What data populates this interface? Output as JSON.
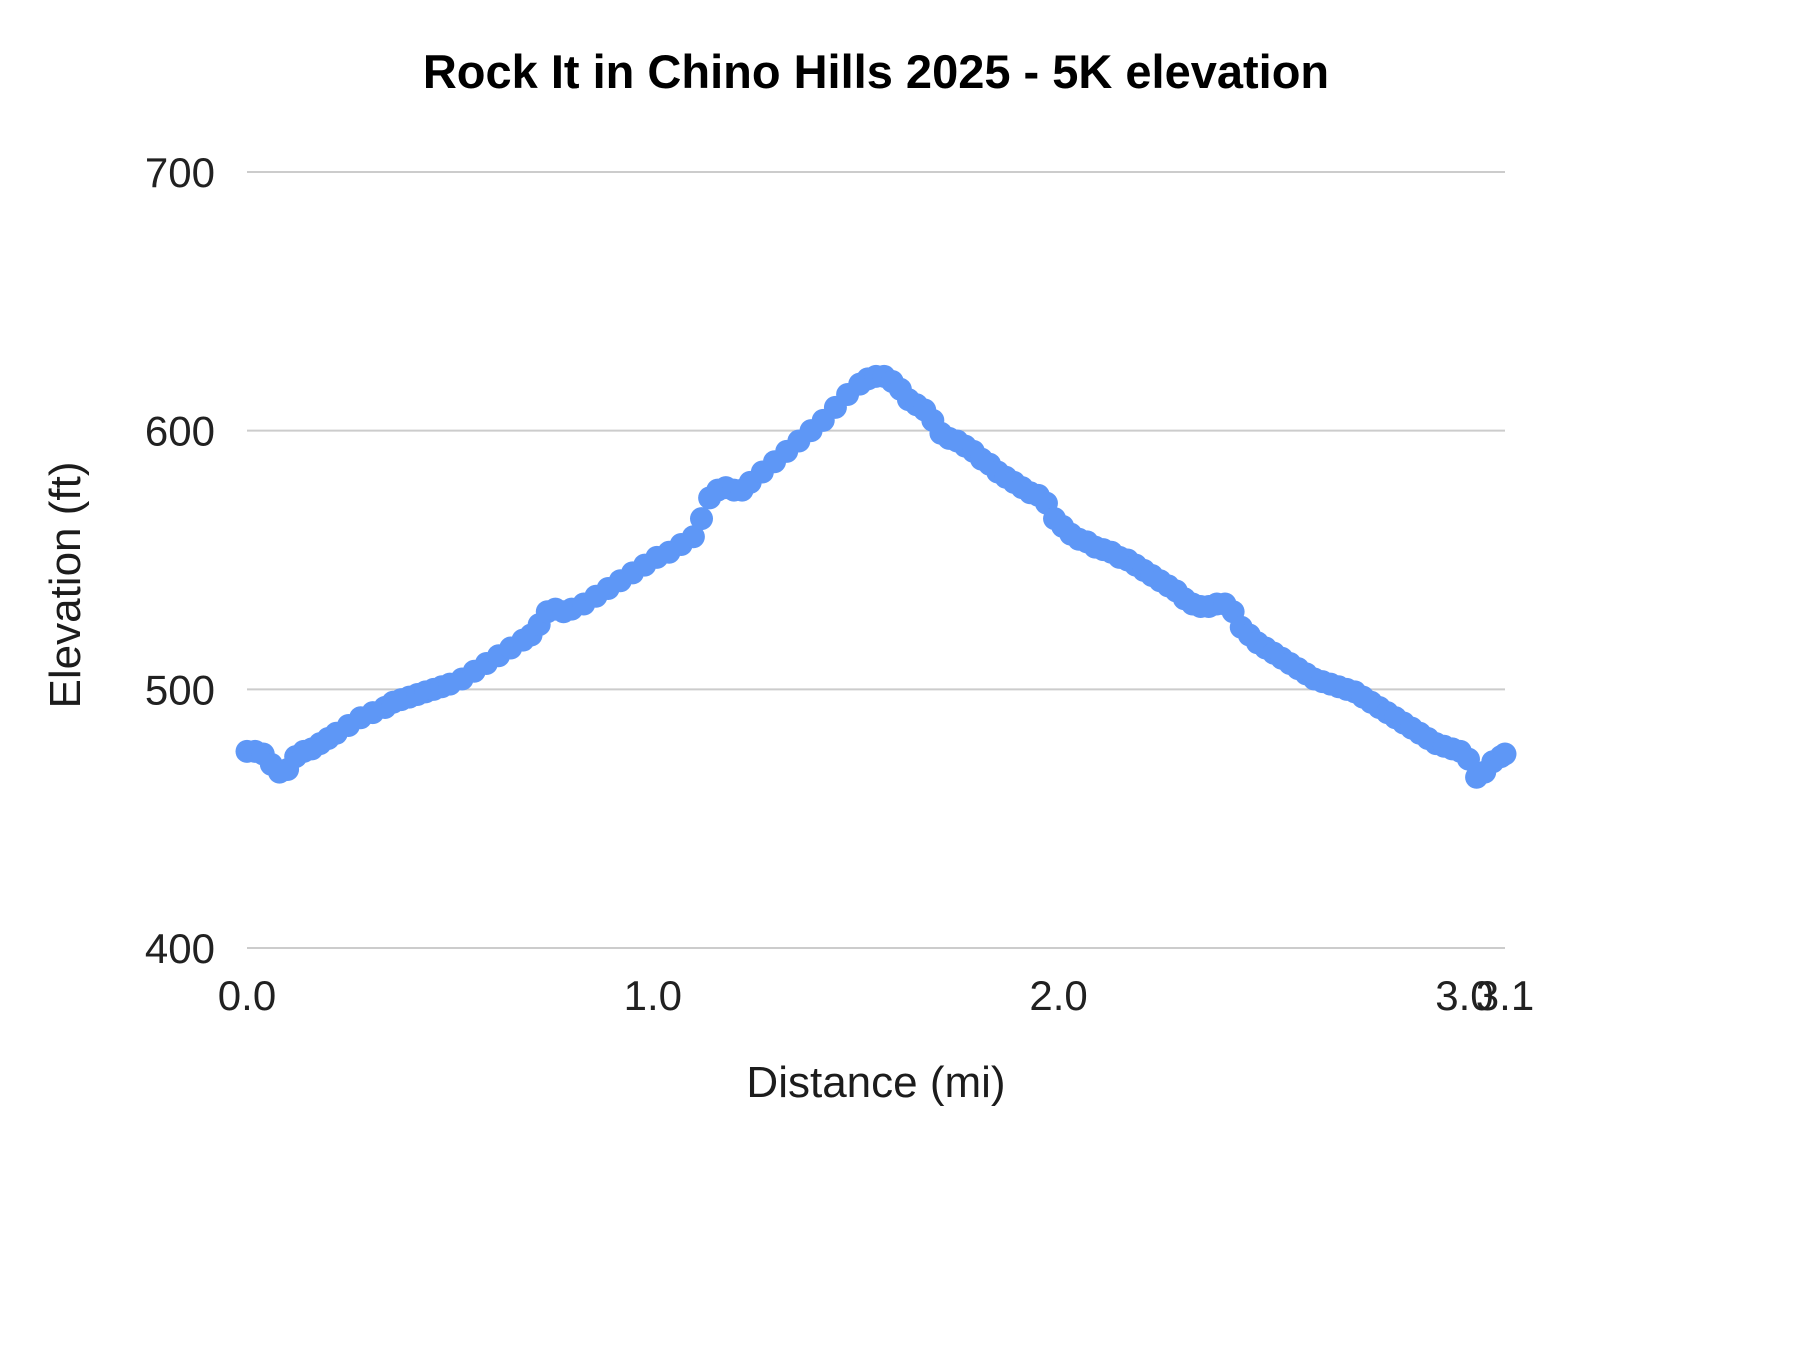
{
  "chart_data": {
    "type": "scatter",
    "title": "Rock It in Chino Hills 2025 - 5K elevation",
    "xlabel": "Distance (mi)",
    "ylabel": "Elevation (ft)",
    "xlim": [
      0,
      3.1
    ],
    "ylim": [
      400,
      700
    ],
    "grid": "horizontal",
    "legend": "none",
    "point_color": "#5e97f6",
    "gridline_color": "#cccccc",
    "text_color": "#212121",
    "x_ticks": [
      {
        "v": 0.0,
        "label": "0.0"
      },
      {
        "v": 1.0,
        "label": "1.0"
      },
      {
        "v": 2.0,
        "label": "2.0"
      },
      {
        "v": 3.0,
        "label": "3.0"
      },
      {
        "v": 3.1,
        "label": "3.1"
      }
    ],
    "y_ticks": [
      {
        "v": 400,
        "label": "400"
      },
      {
        "v": 500,
        "label": "500"
      },
      {
        "v": 600,
        "label": "600"
      },
      {
        "v": 700,
        "label": "700"
      }
    ],
    "series": [
      {
        "name": "Elevation",
        "points": [
          [
            0.0,
            476
          ],
          [
            0.02,
            476
          ],
          [
            0.04,
            475
          ],
          [
            0.06,
            471
          ],
          [
            0.08,
            468
          ],
          [
            0.1,
            469
          ],
          [
            0.12,
            474
          ],
          [
            0.14,
            476
          ],
          [
            0.16,
            477
          ],
          [
            0.18,
            479
          ],
          [
            0.2,
            481
          ],
          [
            0.22,
            483
          ],
          [
            0.25,
            486
          ],
          [
            0.28,
            489
          ],
          [
            0.31,
            491
          ],
          [
            0.34,
            493
          ],
          [
            0.36,
            495
          ],
          [
            0.38,
            496
          ],
          [
            0.4,
            497
          ],
          [
            0.42,
            498
          ],
          [
            0.44,
            499
          ],
          [
            0.46,
            500
          ],
          [
            0.48,
            501
          ],
          [
            0.5,
            502
          ],
          [
            0.53,
            504
          ],
          [
            0.56,
            507
          ],
          [
            0.59,
            510
          ],
          [
            0.62,
            513
          ],
          [
            0.65,
            516
          ],
          [
            0.68,
            519
          ],
          [
            0.7,
            521
          ],
          [
            0.72,
            525
          ],
          [
            0.74,
            530
          ],
          [
            0.76,
            531
          ],
          [
            0.78,
            530
          ],
          [
            0.8,
            531
          ],
          [
            0.83,
            533
          ],
          [
            0.86,
            536
          ],
          [
            0.89,
            539
          ],
          [
            0.92,
            542
          ],
          [
            0.95,
            545
          ],
          [
            0.98,
            548
          ],
          [
            1.01,
            551
          ],
          [
            1.04,
            553
          ],
          [
            1.07,
            556
          ],
          [
            1.1,
            559
          ],
          [
            1.12,
            566
          ],
          [
            1.14,
            574
          ],
          [
            1.16,
            577
          ],
          [
            1.18,
            578
          ],
          [
            1.2,
            577
          ],
          [
            1.22,
            577
          ],
          [
            1.24,
            580
          ],
          [
            1.27,
            584
          ],
          [
            1.3,
            588
          ],
          [
            1.33,
            592
          ],
          [
            1.36,
            596
          ],
          [
            1.39,
            600
          ],
          [
            1.42,
            604
          ],
          [
            1.45,
            609
          ],
          [
            1.48,
            614
          ],
          [
            1.51,
            618
          ],
          [
            1.53,
            620
          ],
          [
            1.55,
            621
          ],
          [
            1.57,
            621
          ],
          [
            1.59,
            619
          ],
          [
            1.61,
            616
          ],
          [
            1.63,
            612
          ],
          [
            1.65,
            610
          ],
          [
            1.67,
            608
          ],
          [
            1.69,
            604
          ],
          [
            1.71,
            599
          ],
          [
            1.73,
            597
          ],
          [
            1.75,
            596
          ],
          [
            1.77,
            594
          ],
          [
            1.79,
            592
          ],
          [
            1.81,
            589
          ],
          [
            1.83,
            587
          ],
          [
            1.85,
            584
          ],
          [
            1.87,
            582
          ],
          [
            1.89,
            580
          ],
          [
            1.91,
            578
          ],
          [
            1.93,
            576
          ],
          [
            1.95,
            575
          ],
          [
            1.97,
            572
          ],
          [
            1.99,
            566
          ],
          [
            2.01,
            563
          ],
          [
            2.03,
            560
          ],
          [
            2.05,
            558
          ],
          [
            2.07,
            557
          ],
          [
            2.09,
            555
          ],
          [
            2.11,
            554
          ],
          [
            2.13,
            553
          ],
          [
            2.15,
            551
          ],
          [
            2.17,
            550
          ],
          [
            2.19,
            548
          ],
          [
            2.21,
            546
          ],
          [
            2.23,
            544
          ],
          [
            2.25,
            542
          ],
          [
            2.27,
            540
          ],
          [
            2.29,
            538
          ],
          [
            2.31,
            535
          ],
          [
            2.33,
            533
          ],
          [
            2.35,
            532
          ],
          [
            2.37,
            532
          ],
          [
            2.39,
            533
          ],
          [
            2.41,
            533
          ],
          [
            2.43,
            530
          ],
          [
            2.45,
            524
          ],
          [
            2.47,
            521
          ],
          [
            2.49,
            518
          ],
          [
            2.51,
            516
          ],
          [
            2.53,
            514
          ],
          [
            2.55,
            512
          ],
          [
            2.57,
            510
          ],
          [
            2.59,
            508
          ],
          [
            2.61,
            506
          ],
          [
            2.63,
            504
          ],
          [
            2.65,
            503
          ],
          [
            2.67,
            502
          ],
          [
            2.69,
            501
          ],
          [
            2.71,
            500
          ],
          [
            2.73,
            499
          ],
          [
            2.75,
            497
          ],
          [
            2.77,
            495
          ],
          [
            2.79,
            493
          ],
          [
            2.81,
            491
          ],
          [
            2.83,
            489
          ],
          [
            2.85,
            487
          ],
          [
            2.87,
            485
          ],
          [
            2.89,
            483
          ],
          [
            2.91,
            481
          ],
          [
            2.93,
            479
          ],
          [
            2.95,
            478
          ],
          [
            2.97,
            477
          ],
          [
            2.99,
            476
          ],
          [
            3.01,
            473
          ],
          [
            3.03,
            466
          ],
          [
            3.05,
            468
          ],
          [
            3.07,
            472
          ],
          [
            3.09,
            474
          ],
          [
            3.1,
            475
          ]
        ]
      }
    ]
  }
}
